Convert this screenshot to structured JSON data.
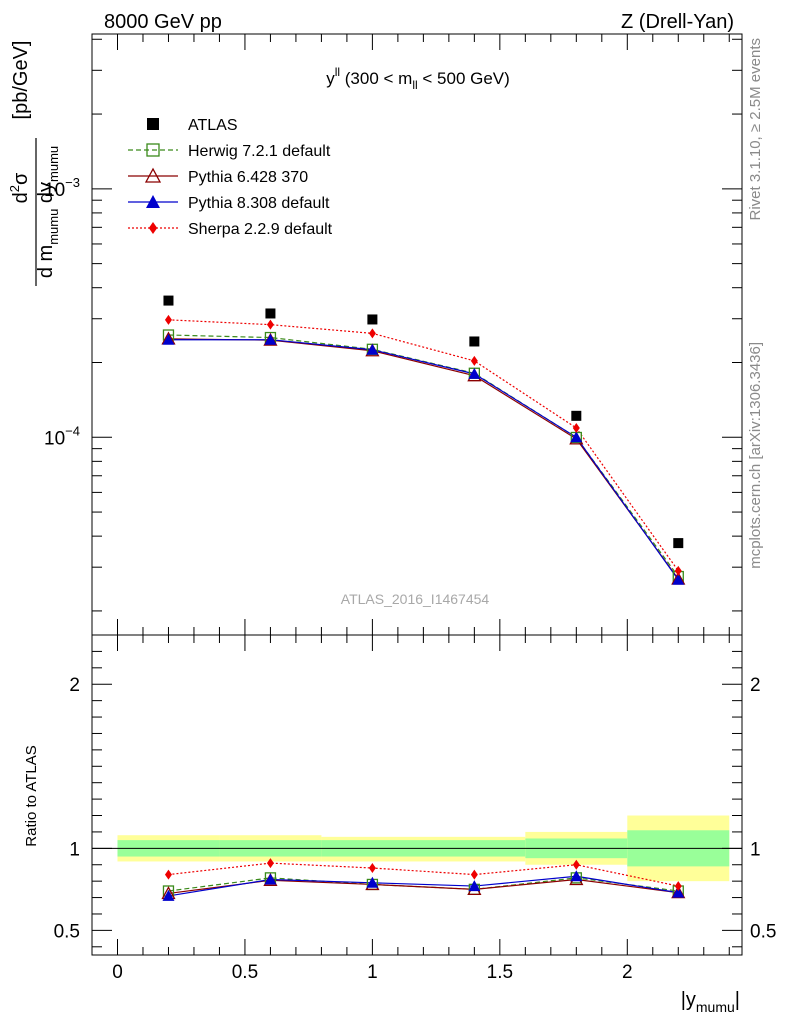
{
  "header": {
    "left": "8000 GeV pp",
    "right": "Z (Drell-Yan)"
  },
  "side_labels": {
    "rivet": "Rivet 3.1.10, ≥ 2.5M events",
    "mcplots": "mcplots.cern.ch [arXiv:1306.3436]"
  },
  "watermark": "ATLAS_2016_I1467454",
  "colors": {
    "atlas": "#000000",
    "herwig": "#3a8a1a",
    "pythia6": "#8b0000",
    "pythia8": "#0000cc",
    "sherpa": "#ee0000",
    "band_inner": "#99ff99",
    "band_outer": "#ffff99"
  },
  "chart_data": [
    {
      "type": "scatter",
      "panel": "main",
      "title": "y^ll (300 < m_ll < 500 GeV)",
      "title_parts": {
        "main": "y",
        "sup": "ll",
        "rest1": " (300 < m",
        "sub": "ll",
        "rest2": " < 500 GeV)"
      },
      "ylabel": "d²σ / d m_mumu dy_mumu [pb/GeV]",
      "ylabel_parts": {
        "num": "d",
        "num_sup": "2",
        "num_rest": "σ",
        "den1": "d m",
        "den_sub1": "mumu",
        "den2": " dy",
        "den_sub2": "mumu",
        "unit": "[pb/GeV]"
      },
      "yscale": "log",
      "ylim": [
        1.6e-05,
        0.0042
      ],
      "xlim": [
        -0.1,
        2.45
      ],
      "yticks_labeled": [
        {
          "value": 0.0001,
          "base": "10",
          "exp": "−4"
        },
        {
          "value": 0.001,
          "base": "10",
          "exp": "−3"
        }
      ],
      "legend_position": "top-left",
      "x": [
        0.2,
        0.6,
        1.0,
        1.4,
        1.8,
        2.2
      ],
      "series": [
        {
          "name": "ATLAS",
          "key": "atlas",
          "marker": "square",
          "line": "none",
          "values": [
            0.000355,
            0.000315,
            0.000298,
            0.000243,
            0.000122,
            3.75e-05
          ]
        },
        {
          "name": "Herwig 7.2.1 default",
          "key": "herwig",
          "marker": "open-square",
          "line": "dashed",
          "values": [
            0.000258,
            0.000252,
            0.000226,
            0.000181,
            9.98e-05,
            2.75e-05
          ]
        },
        {
          "name": "Pythia 6.428 370",
          "key": "pythia6",
          "marker": "open-triangle",
          "line": "solid",
          "values": [
            0.000249,
            0.000246,
            0.000223,
            0.000177,
            9.85e-05,
            2.69e-05
          ]
        },
        {
          "name": "Pythia 8.308 default",
          "key": "pythia8",
          "marker": "triangle",
          "line": "solid",
          "values": [
            0.000247,
            0.000247,
            0.000225,
            0.00018,
            0.0001,
            2.67e-05
          ]
        },
        {
          "name": "Sherpa 2.2.9 default",
          "key": "sherpa",
          "marker": "diamond",
          "line": "dotted",
          "values": [
            0.000297,
            0.000284,
            0.000262,
            0.000203,
            0.000109,
            2.9e-05
          ]
        }
      ]
    },
    {
      "type": "line",
      "panel": "ratio",
      "ylabel": "Ratio to ATLAS",
      "xlabel": "|y_mumu|",
      "xlabel_parts": {
        "pre": "|y",
        "sub": "mumu",
        "post": "|"
      },
      "ylim": [
        0.35,
        2.3
      ],
      "xlim": [
        -0.1,
        2.45
      ],
      "yticks": [
        0.5,
        1,
        2
      ],
      "ytick_labels": [
        "0.5",
        "1",
        "2"
      ],
      "xticks": [
        0,
        0.5,
        1,
        1.5,
        2
      ],
      "xtick_labels": [
        "0",
        "0.5",
        "1",
        "1.5",
        "2"
      ],
      "bins": [
        {
          "lo": 0.0,
          "hi": 0.4,
          "inner": [
            0.95,
            1.05
          ],
          "outer": [
            0.92,
            1.08
          ]
        },
        {
          "lo": 0.4,
          "hi": 0.8,
          "inner": [
            0.95,
            1.05
          ],
          "outer": [
            0.92,
            1.08
          ]
        },
        {
          "lo": 0.8,
          "hi": 1.6,
          "inner": [
            0.95,
            1.05
          ],
          "outer": [
            0.92,
            1.07
          ]
        },
        {
          "lo": 1.6,
          "hi": 2.0,
          "inner": [
            0.94,
            1.06
          ],
          "outer": [
            0.9,
            1.1
          ]
        },
        {
          "lo": 2.0,
          "hi": 2.4,
          "inner": [
            0.89,
            1.11
          ],
          "outer": [
            0.8,
            1.2
          ]
        }
      ],
      "x": [
        0.2,
        0.6,
        1.0,
        1.4,
        1.8,
        2.2
      ],
      "series": [
        {
          "name": "Herwig 7.2.1 default",
          "key": "herwig",
          "marker": "open-square",
          "line": "dashed",
          "values": [
            0.74,
            0.82,
            0.78,
            0.75,
            0.82,
            0.74
          ]
        },
        {
          "name": "Pythia 6.428 370",
          "key": "pythia6",
          "marker": "open-triangle",
          "line": "solid",
          "values": [
            0.725,
            0.805,
            0.78,
            0.75,
            0.81,
            0.73
          ]
        },
        {
          "name": "Pythia 8.308 default",
          "key": "pythia8",
          "marker": "triangle",
          "line": "solid",
          "values": [
            0.71,
            0.81,
            0.79,
            0.77,
            0.83,
            0.73
          ]
        },
        {
          "name": "Sherpa 2.2.9 default",
          "key": "sherpa",
          "marker": "diamond",
          "line": "dotted",
          "values": [
            0.84,
            0.91,
            0.88,
            0.84,
            0.9,
            0.77
          ]
        }
      ]
    }
  ]
}
